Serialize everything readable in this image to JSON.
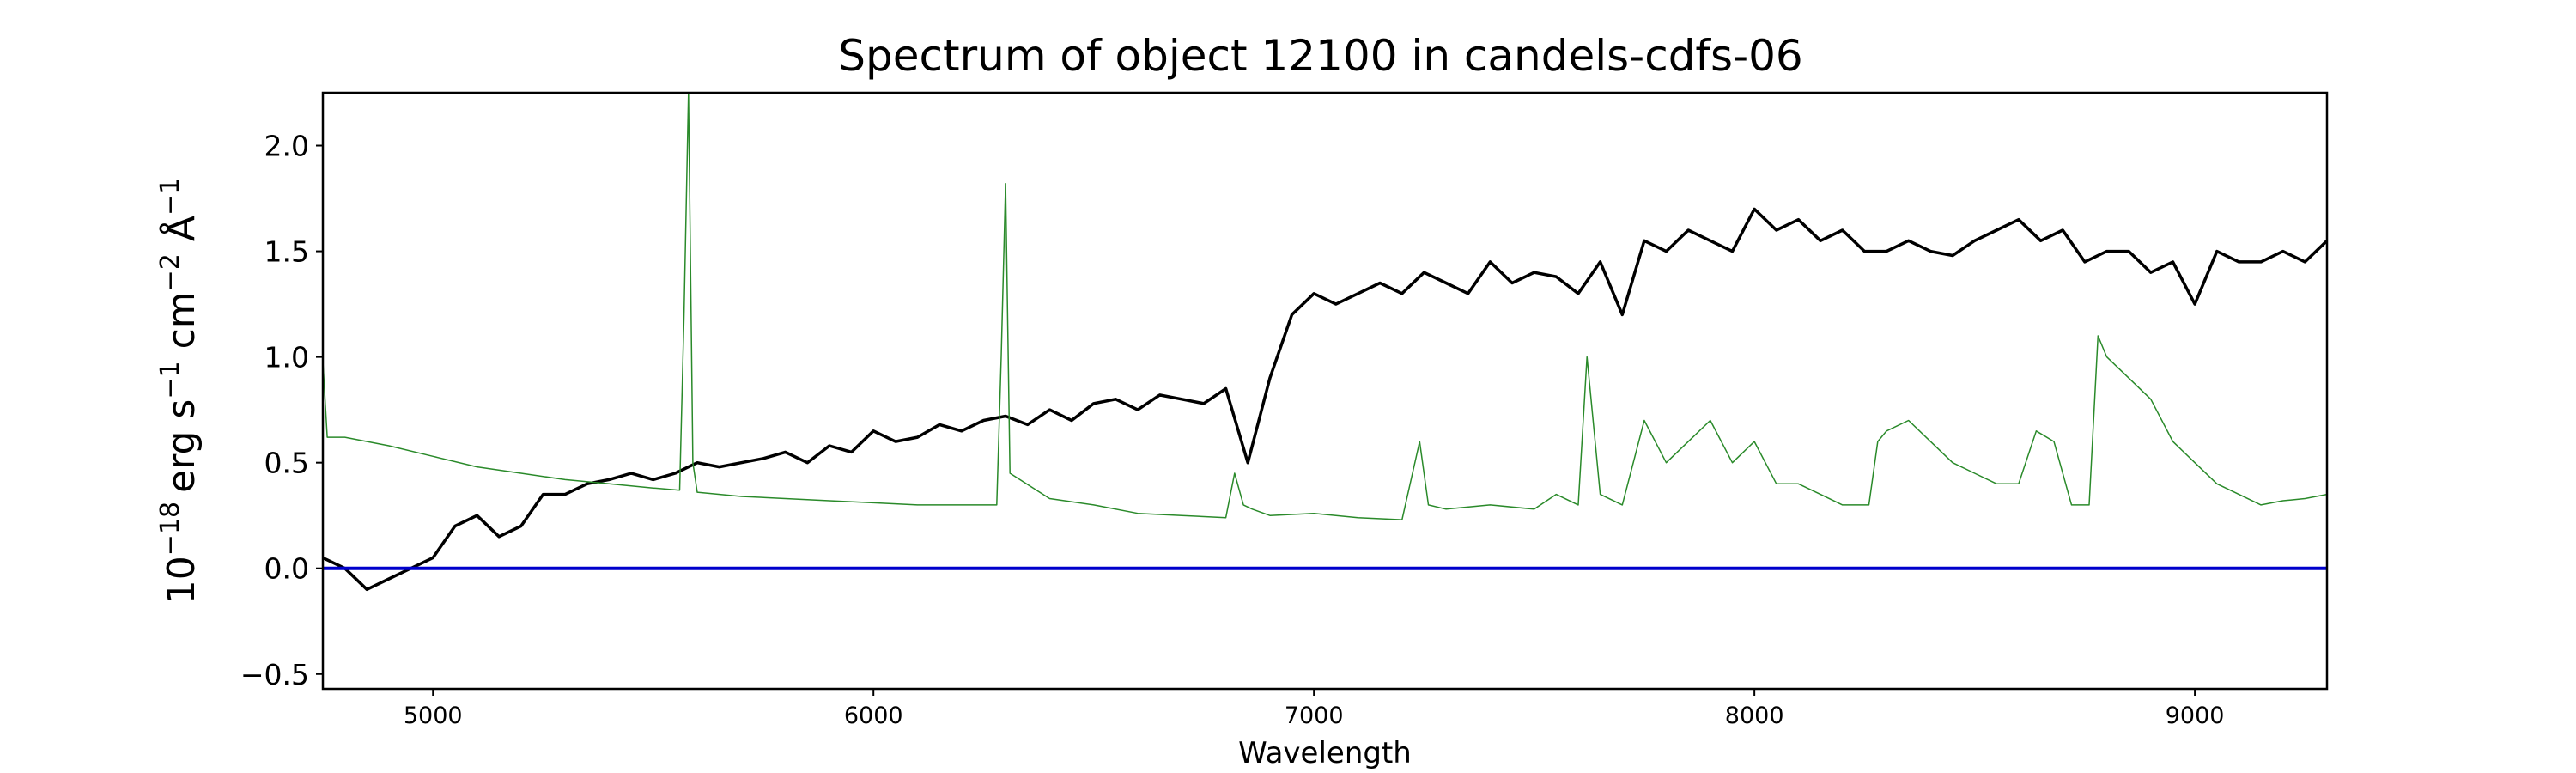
{
  "chart_data": {
    "type": "line",
    "title": "Spectrum of object 12100 in candels-cdfs-06",
    "xlabel": "Wavelength",
    "ylabel": {
      "prefix": "10",
      "exponent": "−18",
      "units": "erg s",
      "s_exp": "−1",
      "cm": " cm",
      "cm_exp": "−2",
      "angstrom": " Å",
      "a_exp": "−1"
    },
    "xlim": [
      4750,
      9300
    ],
    "ylim": [
      -0.57,
      2.25
    ],
    "xticks": [
      5000,
      6000,
      7000,
      8000,
      9000
    ],
    "yticks": [
      -0.5,
      0.0,
      0.5,
      1.0,
      1.5,
      2.0
    ],
    "ytick_labels": [
      "−0.5",
      "0.0",
      "0.5",
      "1.0",
      "1.5",
      "2.0"
    ],
    "series": [
      {
        "color": "#000000",
        "role": "flux",
        "x": [
          4750,
          4800,
          4850,
          4900,
          4950,
          5000,
          5050,
          5100,
          5150,
          5200,
          5250,
          5300,
          5350,
          5400,
          5450,
          5500,
          5550,
          5600,
          5650,
          5700,
          5750,
          5800,
          5850,
          5900,
          5950,
          6000,
          6050,
          6100,
          6150,
          6200,
          6250,
          6300,
          6350,
          6400,
          6450,
          6500,
          6550,
          6600,
          6650,
          6700,
          6750,
          6800,
          6850,
          6900,
          6950,
          7000,
          7050,
          7100,
          7150,
          7200,
          7250,
          7300,
          7350,
          7400,
          7450,
          7500,
          7550,
          7600,
          7650,
          7700,
          7750,
          7800,
          7850,
          7900,
          7950,
          8000,
          8050,
          8100,
          8150,
          8200,
          8250,
          8300,
          8350,
          8400,
          8450,
          8500,
          8550,
          8600,
          8650,
          8700,
          8750,
          8800,
          8850,
          8900,
          8950,
          9000,
          9050,
          9100,
          9150,
          9200,
          9250,
          9300
        ],
        "y": [
          0.05,
          0.0,
          -0.1,
          -0.05,
          0.0,
          0.05,
          0.2,
          0.25,
          0.15,
          0.2,
          0.35,
          0.35,
          0.4,
          0.42,
          0.45,
          0.42,
          0.45,
          0.5,
          0.48,
          0.5,
          0.52,
          0.55,
          0.5,
          0.58,
          0.55,
          0.65,
          0.6,
          0.62,
          0.68,
          0.65,
          0.7,
          0.72,
          0.68,
          0.75,
          0.7,
          0.78,
          0.8,
          0.75,
          0.82,
          0.8,
          0.78,
          0.85,
          0.5,
          0.9,
          1.2,
          1.3,
          1.25,
          1.3,
          1.35,
          1.3,
          1.4,
          1.35,
          1.3,
          1.45,
          1.35,
          1.4,
          1.38,
          1.3,
          1.45,
          1.2,
          1.55,
          1.5,
          1.6,
          1.55,
          1.5,
          1.7,
          1.6,
          1.65,
          1.55,
          1.6,
          1.5,
          1.5,
          1.55,
          1.5,
          1.48,
          1.55,
          1.6,
          1.65,
          1.55,
          1.6,
          1.45,
          1.5,
          1.5,
          1.4,
          1.45,
          1.25,
          1.5,
          1.45,
          1.45,
          1.5,
          1.45,
          1.55
        ]
      },
      {
        "color": "#2a8a2a",
        "role": "error",
        "x": [
          4750,
          4760,
          4800,
          4900,
          5000,
          5100,
          5200,
          5300,
          5400,
          5500,
          5560,
          5570,
          5580,
          5590,
          5600,
          5700,
          5800,
          5900,
          6000,
          6100,
          6200,
          6280,
          6290,
          6300,
          6310,
          6400,
          6500,
          6600,
          6700,
          6800,
          6820,
          6840,
          6860,
          6900,
          7000,
          7100,
          7200,
          7240,
          7260,
          7300,
          7400,
          7500,
          7550,
          7600,
          7620,
          7650,
          7700,
          7750,
          7800,
          7850,
          7900,
          7950,
          8000,
          8050,
          8100,
          8150,
          8200,
          8260,
          8280,
          8300,
          8350,
          8400,
          8450,
          8500,
          8550,
          8600,
          8640,
          8680,
          8720,
          8760,
          8780,
          8800,
          8850,
          8900,
          8950,
          9000,
          9050,
          9100,
          9150,
          9200,
          9250,
          9300
        ],
        "y": [
          0.98,
          0.62,
          0.62,
          0.58,
          0.53,
          0.48,
          0.45,
          0.42,
          0.4,
          0.38,
          0.37,
          1.2,
          2.25,
          0.5,
          0.36,
          0.34,
          0.33,
          0.32,
          0.31,
          0.3,
          0.3,
          0.3,
          1.0,
          1.82,
          0.45,
          0.33,
          0.3,
          0.26,
          0.25,
          0.24,
          0.45,
          0.3,
          0.28,
          0.25,
          0.26,
          0.24,
          0.23,
          0.6,
          0.3,
          0.28,
          0.3,
          0.28,
          0.35,
          0.3,
          1.0,
          0.35,
          0.3,
          0.7,
          0.5,
          0.6,
          0.7,
          0.5,
          0.6,
          0.4,
          0.4,
          0.35,
          0.3,
          0.3,
          0.6,
          0.65,
          0.7,
          0.6,
          0.5,
          0.45,
          0.4,
          0.4,
          0.65,
          0.6,
          0.3,
          0.3,
          1.1,
          1.0,
          0.9,
          0.8,
          0.6,
          0.5,
          0.4,
          0.35,
          0.3,
          0.32,
          0.33,
          0.35
        ]
      },
      {
        "color": "#0000cc",
        "role": "zero",
        "x": [
          4750,
          9300
        ],
        "y": [
          0.0,
          0.0
        ]
      }
    ],
    "grid": false,
    "legend": "none"
  }
}
